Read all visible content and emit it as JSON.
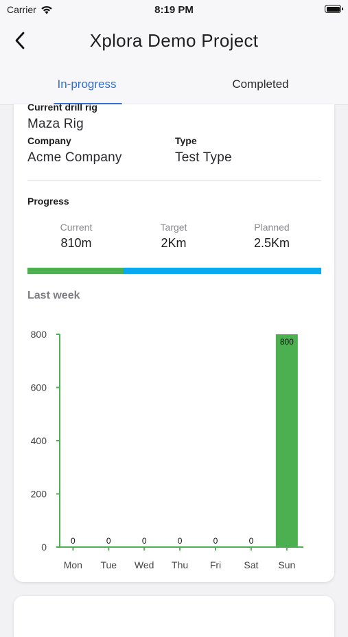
{
  "status_bar": {
    "carrier": "Carrier",
    "time": "8:19 PM"
  },
  "header": {
    "title": "Xplora Demo Project",
    "tabs": [
      {
        "label": "In-progress",
        "active": true
      },
      {
        "label": "Completed",
        "active": false
      }
    ]
  },
  "details": {
    "drill_rig_label": "Current drill rig",
    "drill_rig_value": "Maza Rig",
    "company_label": "Company",
    "company_value": "Acme Company",
    "type_label": "Type",
    "type_value": "Test Type"
  },
  "progress": {
    "label": "Progress",
    "current_label": "Current",
    "current_value": "810m",
    "target_label": "Target",
    "target_value": "2Km",
    "planned_label": "Planned",
    "planned_value": "2.5Km",
    "bar_fraction": 0.324,
    "colors": {
      "done": "#4caf50",
      "remaining": "#0aa8ee"
    }
  },
  "chart_section": {
    "title": "Last week"
  },
  "chart_data": {
    "type": "bar",
    "categories": [
      "Mon",
      "Tue",
      "Wed",
      "Thu",
      "Fri",
      "Sat",
      "Sun"
    ],
    "values": [
      0,
      0,
      0,
      0,
      0,
      0,
      800
    ],
    "data_labels": [
      "0",
      "0",
      "0",
      "0",
      "0",
      "0",
      "800"
    ],
    "y_ticks": [
      0,
      200,
      400,
      600,
      800
    ],
    "ylim": [
      0,
      800
    ],
    "title": "",
    "xlabel": "",
    "ylabel": "",
    "grid": false,
    "bar_color": "#4caf50",
    "axis_color": "#4caf50"
  }
}
